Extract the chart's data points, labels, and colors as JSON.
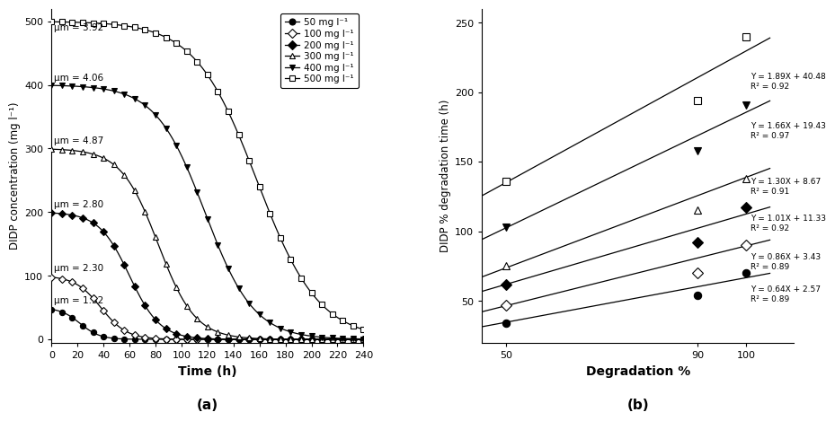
{
  "panel_a": {
    "xlabel": "Time (h)",
    "ylabel": "DIDP concentration (mg l⁻¹)",
    "xlim": [
      0,
      240
    ],
    "ylim": [
      -5,
      520
    ],
    "xticks": [
      0,
      20,
      40,
      60,
      80,
      100,
      120,
      140,
      160,
      180,
      200,
      220,
      240
    ],
    "yticks": [
      0,
      100,
      200,
      300,
      400,
      500
    ],
    "label": "(a)",
    "series": [
      {
        "label": "50 mg l⁻¹",
        "C0": 50,
        "marker": "o",
        "filled": true,
        "mu_label": "μm = 1.32",
        "mu_x": 2,
        "mu_y": 62,
        "k": 0.13,
        "t50": 22
      },
      {
        "label": "100 mg l⁻¹",
        "C0": 100,
        "marker": "D",
        "filled": false,
        "mu_label": "μm = 2.30",
        "mu_x": 2,
        "mu_y": 112,
        "k": 0.1,
        "t50": 38
      },
      {
        "label": "200 mg l⁻¹",
        "C0": 200,
        "marker": "D",
        "filled": true,
        "mu_label": "μm = 2.80",
        "mu_x": 2,
        "mu_y": 212,
        "k": 0.085,
        "t50": 60
      },
      {
        "label": "300 mg l⁻¹",
        "C0": 300,
        "marker": "^",
        "filled": false,
        "mu_label": "μm = 4.87",
        "mu_x": 2,
        "mu_y": 312,
        "k": 0.07,
        "t50": 82
      },
      {
        "label": "400 mg l⁻¹",
        "C0": 400,
        "marker": "v",
        "filled": true,
        "mu_label": "μm = 4.06",
        "mu_x": 2,
        "mu_y": 412,
        "k": 0.053,
        "t50": 118
      },
      {
        "label": "500 mg l⁻¹",
        "C0": 500,
        "marker": "s",
        "filled": false,
        "mu_label": "μm = 3.92",
        "mu_x": 2,
        "mu_y": 490,
        "k": 0.042,
        "t50": 158
      }
    ]
  },
  "panel_b": {
    "xlabel": "Degradation %",
    "ylabel": "DIDP % degradation time (h)",
    "xlim": [
      45,
      110
    ],
    "ylim": [
      20,
      260
    ],
    "xticks": [
      50,
      90,
      100
    ],
    "yticks": [
      50,
      100,
      150,
      200,
      250
    ],
    "label": "(b)",
    "series": [
      {
        "label": "50 mg l⁻¹",
        "marker": "o",
        "filled": true,
        "x": [
          50,
          90,
          100
        ],
        "y": [
          34,
          54,
          70
        ],
        "slope": 0.64,
        "intercept": 2.57,
        "r2": 0.89,
        "eq_x": 101,
        "eq_y": 55
      },
      {
        "label": "100 mg l⁻¹",
        "marker": "D",
        "filled": false,
        "x": [
          50,
          90,
          100
        ],
        "y": [
          47,
          70,
          90
        ],
        "slope": 0.86,
        "intercept": 3.43,
        "r2": 0.89,
        "eq_x": 101,
        "eq_y": 78
      },
      {
        "label": "200 mg l⁻¹",
        "marker": "D",
        "filled": true,
        "x": [
          50,
          90,
          100
        ],
        "y": [
          62,
          92,
          117
        ],
        "slope": 1.01,
        "intercept": 11.33,
        "r2": 0.92,
        "eq_x": 101,
        "eq_y": 106
      },
      {
        "label": "300 mg l⁻¹",
        "marker": "^",
        "filled": false,
        "x": [
          50,
          90,
          100
        ],
        "y": [
          75,
          115,
          138
        ],
        "slope": 1.3,
        "intercept": 8.67,
        "r2": 0.91,
        "eq_x": 101,
        "eq_y": 132
      },
      {
        "label": "400 mg l⁻¹",
        "marker": "v",
        "filled": true,
        "x": [
          50,
          90,
          100
        ],
        "y": [
          103,
          158,
          191
        ],
        "slope": 1.66,
        "intercept": 19.43,
        "r2": 0.97,
        "eq_x": 101,
        "eq_y": 172
      },
      {
        "label": "500 mg l⁻¹",
        "marker": "s",
        "filled": false,
        "x": [
          50,
          90,
          100
        ],
        "y": [
          136,
          194,
          240
        ],
        "slope": 1.89,
        "intercept": 40.48,
        "r2": 0.92,
        "eq_x": 101,
        "eq_y": 208
      }
    ]
  }
}
